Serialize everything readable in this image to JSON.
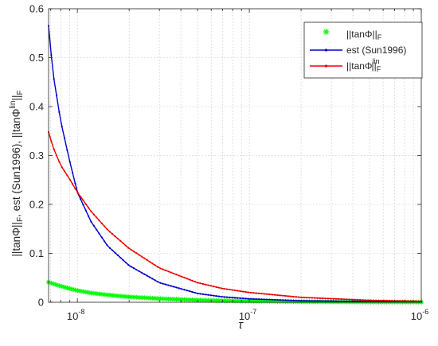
{
  "chart_data": {
    "type": "line",
    "xscale": "log",
    "xlim": [
      6.8e-09,
      1e-06
    ],
    "ylim": [
      0,
      0.6
    ],
    "xlabel": "τ",
    "ylabel_parts": {
      "a": "||tanΦ||",
      "a_sub": "F",
      "b": ", est (Sun1996), ||tanΦ",
      "b_sup": "lin",
      "c": "||",
      "c_sub": "F"
    },
    "grid": true,
    "legend_location": "top-right",
    "x_ticks": [
      1e-08,
      1e-07,
      1e-06
    ],
    "x_tick_labels": [
      {
        "base": "10",
        "exp": "-8"
      },
      {
        "base": "10",
        "exp": "-7"
      },
      {
        "base": "10",
        "exp": "-6"
      }
    ],
    "y_ticks": [
      0,
      0.1,
      0.2,
      0.3,
      0.4,
      0.5,
      0.6
    ],
    "y_tick_labels": [
      "0",
      "0.1",
      "0.2",
      "0.3",
      "0.4",
      "0.5",
      "0.6"
    ],
    "x": [
      6.8e-09,
      7.2e-09,
      8e-09,
      9e-09,
      1e-08,
      1.2e-08,
      1.5e-08,
      2e-08,
      3e-08,
      5e-08,
      7e-08,
      1e-07,
      2e-07,
      5e-07,
      1e-06
    ],
    "series": [
      {
        "key": "tan",
        "color": "#00ff00",
        "marker": "asterisk",
        "legend": {
          "text": "||tanΦ||",
          "sub": "F",
          "sup": ""
        },
        "values": [
          0.041,
          0.038,
          0.033,
          0.028,
          0.024,
          0.019,
          0.015,
          0.011,
          0.0075,
          0.0045,
          0.0032,
          0.0024,
          0.0012,
          0.0005,
          0.0003
        ]
      },
      {
        "key": "est",
        "color": "#0000cc",
        "marker": "dot",
        "legend": {
          "text": "est (Sun1996)",
          "sub": "",
          "sup": ""
        },
        "values": [
          0.565,
          0.47,
          0.37,
          0.29,
          0.225,
          0.165,
          0.115,
          0.075,
          0.04,
          0.018,
          0.011,
          0.007,
          0.003,
          0.0015,
          0.001
        ]
      },
      {
        "key": "lin",
        "color": "#ee0000",
        "marker": "dot",
        "legend": {
          "text": "||tanΦ",
          "sub": "F",
          "sup": "lin",
          "tail": "||"
        },
        "values": [
          0.348,
          0.318,
          0.28,
          0.252,
          0.225,
          0.186,
          0.148,
          0.11,
          0.07,
          0.04,
          0.028,
          0.02,
          0.01,
          0.004,
          0.002
        ]
      }
    ]
  }
}
